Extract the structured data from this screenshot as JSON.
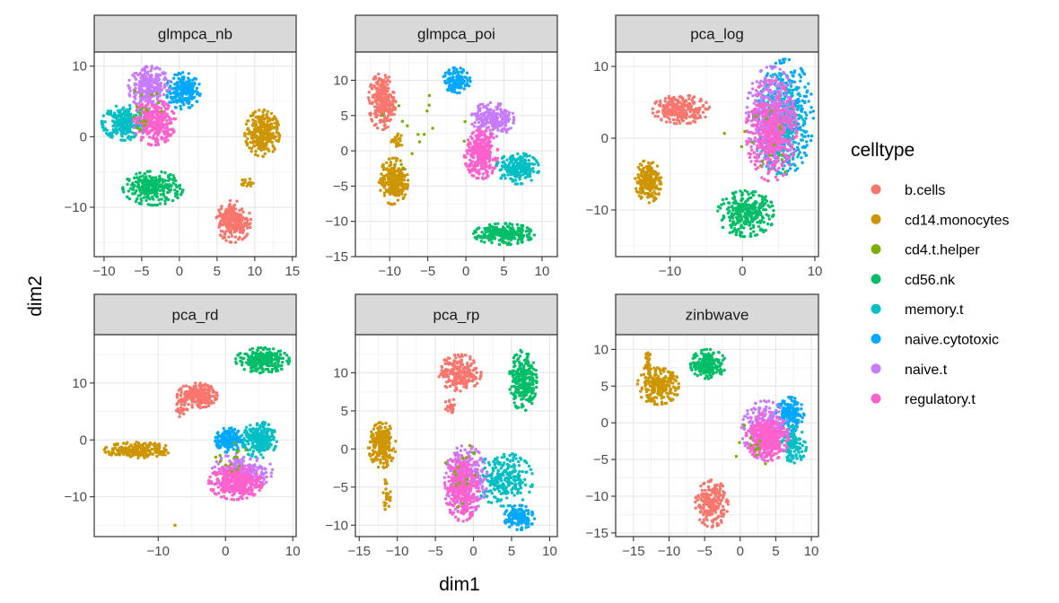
{
  "chart_data": {
    "type": "scatter",
    "xlabel": "dim1",
    "ylabel": "dim2",
    "legend": {
      "title": "celltype",
      "placement": "right",
      "entries": [
        {
          "name": "b.cells",
          "color": "#F8766D"
        },
        {
          "name": "cd14.monocytes",
          "color": "#CD9600"
        },
        {
          "name": "cd4.t.helper",
          "color": "#7CAE00"
        },
        {
          "name": "cd56.nk",
          "color": "#00BE67"
        },
        {
          "name": "memory.t",
          "color": "#00BFC4"
        },
        {
          "name": "naive.cytotoxic",
          "color": "#00A9FF"
        },
        {
          "name": "naive.t",
          "color": "#C77CFF"
        },
        {
          "name": "regulatory.t",
          "color": "#FF61CC"
        }
      ]
    },
    "panels": [
      {
        "title": "glmpca_nb",
        "xlim": [
          -11.3,
          15.5
        ],
        "ylim": [
          -17.0,
          12.0
        ],
        "xticks": [
          -10,
          -5,
          0,
          5,
          10,
          15
        ],
        "yticks": [
          -10,
          0,
          10
        ],
        "xtick_labels": [
          "−10",
          "−5",
          "0",
          "5",
          "10",
          "15"
        ],
        "ytick_labels": [
          "−10",
          "0",
          "10"
        ],
        "clusters": [
          {
            "type": "naive.cytotoxic",
            "cx": 0.5,
            "cy": 6.5,
            "rx": 2.3,
            "ry": 2.6,
            "n": 220
          },
          {
            "type": "naive.t",
            "cx": -4.0,
            "cy": 7.0,
            "rx": 2.8,
            "ry": 3.0,
            "n": 260
          },
          {
            "type": "memory.t",
            "cx": -7.3,
            "cy": 2.0,
            "rx": 3.0,
            "ry": 2.5,
            "n": 260
          },
          {
            "type": "regulatory.t",
            "cx": -3.3,
            "cy": 2.0,
            "rx": 2.8,
            "ry": 3.2,
            "n": 300
          },
          {
            "type": "cd56.nk",
            "cx": -3.5,
            "cy": -7.3,
            "rx": 4.0,
            "ry": 2.4,
            "n": 280
          },
          {
            "type": "cd14.monocytes",
            "cx": 11.0,
            "cy": 0.5,
            "rx": 2.3,
            "ry": 3.3,
            "n": 300
          },
          {
            "type": "cd14.monocytes",
            "cx": 9.0,
            "cy": -6.5,
            "rx": 0.8,
            "ry": 0.6,
            "n": 20
          },
          {
            "type": "b.cells",
            "cx": 7.2,
            "cy": -12.0,
            "rx": 2.3,
            "ry": 3.0,
            "n": 240
          },
          {
            "type": "cd4.t.helper",
            "cx": -4.5,
            "cy": 4.0,
            "rx": 3.0,
            "ry": 3.0,
            "n": 18
          }
        ]
      },
      {
        "title": "glmpca_poi",
        "xlim": [
          -14.5,
          12.0
        ],
        "ylim": [
          -15.0,
          14.0
        ],
        "xticks": [
          -10,
          -5,
          0,
          5,
          10
        ],
        "yticks": [
          -15,
          -10,
          -5,
          0,
          5,
          10
        ],
        "xtick_labels": [
          "−10",
          "−5",
          "0",
          "5",
          "10"
        ],
        "ytick_labels": [
          "−15",
          "−10",
          "−5",
          "0",
          "5",
          "10"
        ],
        "clusters": [
          {
            "type": "b.cells",
            "cx": -11.0,
            "cy": 7.0,
            "rx": 1.8,
            "ry": 4.0,
            "n": 240
          },
          {
            "type": "cd14.monocytes",
            "cx": -9.5,
            "cy": -4.3,
            "rx": 1.9,
            "ry": 3.3,
            "n": 260
          },
          {
            "type": "cd14.monocytes",
            "cx": -9.0,
            "cy": 1.5,
            "rx": 0.8,
            "ry": 1.0,
            "n": 20
          },
          {
            "type": "naive.cytotoxic",
            "cx": -1.2,
            "cy": 10.0,
            "rx": 1.8,
            "ry": 1.8,
            "n": 140
          },
          {
            "type": "naive.t",
            "cx": 3.5,
            "cy": 4.5,
            "rx": 2.8,
            "ry": 2.5,
            "n": 220
          },
          {
            "type": "regulatory.t",
            "cx": 2.0,
            "cy": -0.5,
            "rx": 2.2,
            "ry": 3.5,
            "n": 300
          },
          {
            "type": "memory.t",
            "cx": 6.8,
            "cy": -2.5,
            "rx": 2.8,
            "ry": 2.2,
            "n": 220
          },
          {
            "type": "cd56.nk",
            "cx": 5.0,
            "cy": -11.8,
            "rx": 4.0,
            "ry": 1.5,
            "n": 260
          },
          {
            "type": "cd4.t.helper",
            "cx": -6.0,
            "cy": 3.0,
            "rx": 6.0,
            "ry": 6.0,
            "n": 16
          }
        ]
      },
      {
        "title": "pca_log",
        "xlim": [
          -17.5,
          10.5
        ],
        "ylim": [
          -16.5,
          12.0
        ],
        "xticks": [
          -10,
          0,
          10
        ],
        "yticks": [
          -10,
          0,
          10
        ],
        "xtick_labels": [
          "−10",
          "0",
          "10"
        ],
        "ytick_labels": [
          "−10",
          "0",
          "10"
        ],
        "clusters": [
          {
            "type": "b.cells",
            "cx": -8.5,
            "cy": 4.0,
            "rx": 4.0,
            "ry": 2.0,
            "n": 240
          },
          {
            "type": "cd14.monocytes",
            "cx": -13.0,
            "cy": -6.0,
            "rx": 1.8,
            "ry": 3.0,
            "n": 220
          },
          {
            "type": "cd56.nk",
            "cx": 0.5,
            "cy": -10.5,
            "rx": 4.0,
            "ry": 3.2,
            "n": 320
          },
          {
            "type": "naive.cytotoxic",
            "cx": 6.0,
            "cy": 3.0,
            "rx": 3.8,
            "ry": 8.0,
            "n": 420
          },
          {
            "type": "memory.t",
            "cx": 5.0,
            "cy": 2.0,
            "rx": 3.5,
            "ry": 7.0,
            "n": 300
          },
          {
            "type": "naive.t",
            "cx": 4.0,
            "cy": 3.0,
            "rx": 3.5,
            "ry": 7.0,
            "n": 320
          },
          {
            "type": "regulatory.t",
            "cx": 4.0,
            "cy": 1.0,
            "rx": 3.5,
            "ry": 7.0,
            "n": 400
          },
          {
            "type": "cd4.t.helper",
            "cx": 2.5,
            "cy": 0.0,
            "rx": 5.0,
            "ry": 8.0,
            "n": 16
          }
        ]
      },
      {
        "title": "pca_rd",
        "xlim": [
          -19.5,
          10.5
        ],
        "ylim": [
          -17.0,
          18.5
        ],
        "xticks": [
          -10,
          0,
          10
        ],
        "yticks": [
          -10,
          0,
          10
        ],
        "xtick_labels": [
          "−10",
          "0",
          "10"
        ],
        "ytick_labels": [
          "−10",
          "0",
          "10"
        ],
        "clusters": [
          {
            "type": "cd56.nk",
            "cx": 5.5,
            "cy": 14.0,
            "rx": 4.0,
            "ry": 2.2,
            "n": 260
          },
          {
            "type": "b.cells",
            "cx": -4.2,
            "cy": 7.8,
            "rx": 3.0,
            "ry": 2.2,
            "n": 200
          },
          {
            "type": "b.cells",
            "cx": -6.5,
            "cy": 5.5,
            "rx": 1.0,
            "ry": 1.5,
            "n": 25
          },
          {
            "type": "cd14.monocytes",
            "cx": -13.0,
            "cy": -1.8,
            "rx": 5.0,
            "ry": 1.4,
            "n": 240
          },
          {
            "type": "memory.t",
            "cx": 5.0,
            "cy": 0.0,
            "rx": 2.6,
            "ry": 3.2,
            "n": 240
          },
          {
            "type": "naive.cytotoxic",
            "cx": 0.5,
            "cy": 0.0,
            "rx": 2.0,
            "ry": 2.2,
            "n": 160
          },
          {
            "type": "naive.t",
            "cx": 2.5,
            "cy": -5.5,
            "rx": 4.5,
            "ry": 3.2,
            "n": 240
          },
          {
            "type": "regulatory.t",
            "cx": 1.5,
            "cy": -7.5,
            "rx": 4.0,
            "ry": 3.0,
            "n": 320
          },
          {
            "type": "cd4.t.helper",
            "cx": 0.5,
            "cy": -4.0,
            "rx": 4.0,
            "ry": 4.0,
            "n": 14
          }
        ],
        "outliers": [
          {
            "type": "cd14.monocytes",
            "x": -7.5,
            "y": -15.0
          }
        ]
      },
      {
        "title": "pca_rp",
        "xlim": [
          -15.5,
          11.0
        ],
        "ylim": [
          -11.5,
          15.0
        ],
        "xticks": [
          -15,
          -10,
          -5,
          0,
          5,
          10
        ],
        "yticks": [
          -10,
          -5,
          0,
          5,
          10
        ],
        "xtick_labels": [
          "−15",
          "−10",
          "−5",
          "0",
          "5",
          "10"
        ],
        "ytick_labels": [
          "−10",
          "−5",
          "0",
          "5",
          "10"
        ],
        "clusters": [
          {
            "type": "b.cells",
            "cx": -1.8,
            "cy": 10.0,
            "rx": 2.8,
            "ry": 2.4,
            "n": 220
          },
          {
            "type": "b.cells",
            "cx": -3.0,
            "cy": 5.5,
            "rx": 0.8,
            "ry": 1.2,
            "n": 25
          },
          {
            "type": "cd56.nk",
            "cx": 6.5,
            "cy": 9.0,
            "rx": 1.8,
            "ry": 4.0,
            "n": 260
          },
          {
            "type": "cd14.monocytes",
            "cx": -12.0,
            "cy": 0.5,
            "rx": 1.8,
            "ry": 3.0,
            "n": 240
          },
          {
            "type": "cd14.monocytes",
            "cx": -11.5,
            "cy": -6.0,
            "rx": 0.6,
            "ry": 2.0,
            "n": 25
          },
          {
            "type": "memory.t",
            "cx": 4.0,
            "cy": -4.0,
            "rx": 3.8,
            "ry": 3.5,
            "n": 260
          },
          {
            "type": "naive.cytotoxic",
            "cx": 6.0,
            "cy": -9.0,
            "rx": 2.0,
            "ry": 1.6,
            "n": 160
          },
          {
            "type": "naive.t",
            "cx": -1.0,
            "cy": -4.0,
            "rx": 2.8,
            "ry": 4.5,
            "n": 280
          },
          {
            "type": "regulatory.t",
            "cx": -1.5,
            "cy": -5.0,
            "rx": 2.3,
            "ry": 4.5,
            "n": 300
          },
          {
            "type": "cd4.t.helper",
            "cx": -1.0,
            "cy": -3.0,
            "rx": 3.0,
            "ry": 5.0,
            "n": 16
          }
        ]
      },
      {
        "title": "zinbwave",
        "xlim": [
          -17.5,
          11.0
        ],
        "ylim": [
          -15.5,
          12.0
        ],
        "xticks": [
          -15,
          -10,
          -5,
          0,
          5,
          10
        ],
        "yticks": [
          -15,
          -10,
          -5,
          0,
          5,
          10
        ],
        "xtick_labels": [
          "−15",
          "−10",
          "−5",
          "0",
          "5",
          "10"
        ],
        "ytick_labels": [
          "−15",
          "−10",
          "−5",
          "0",
          "5",
          "10"
        ],
        "clusters": [
          {
            "type": "cd14.monocytes",
            "cx": -11.5,
            "cy": 5.0,
            "rx": 3.0,
            "ry": 2.5,
            "n": 240
          },
          {
            "type": "cd14.monocytes",
            "cx": -13.0,
            "cy": 8.5,
            "rx": 0.6,
            "ry": 1.8,
            "n": 25
          },
          {
            "type": "cd56.nk",
            "cx": -4.5,
            "cy": 8.0,
            "rx": 2.5,
            "ry": 2.0,
            "n": 200
          },
          {
            "type": "b.cells",
            "cx": -4.0,
            "cy": -11.0,
            "rx": 2.3,
            "ry": 3.2,
            "n": 220
          },
          {
            "type": "naive.cytotoxic",
            "cx": 7.0,
            "cy": 1.0,
            "rx": 2.0,
            "ry": 2.5,
            "n": 180
          },
          {
            "type": "memory.t",
            "cx": 7.5,
            "cy": -3.0,
            "rx": 1.8,
            "ry": 2.5,
            "n": 120
          },
          {
            "type": "naive.t",
            "cx": 3.5,
            "cy": -1.0,
            "rx": 3.3,
            "ry": 4.0,
            "n": 260
          },
          {
            "type": "regulatory.t",
            "cx": 3.8,
            "cy": -2.0,
            "rx": 3.0,
            "ry": 3.2,
            "n": 320
          },
          {
            "type": "cd4.t.helper",
            "cx": 2.0,
            "cy": -3.0,
            "rx": 3.0,
            "ry": 3.0,
            "n": 12
          }
        ]
      }
    ]
  }
}
